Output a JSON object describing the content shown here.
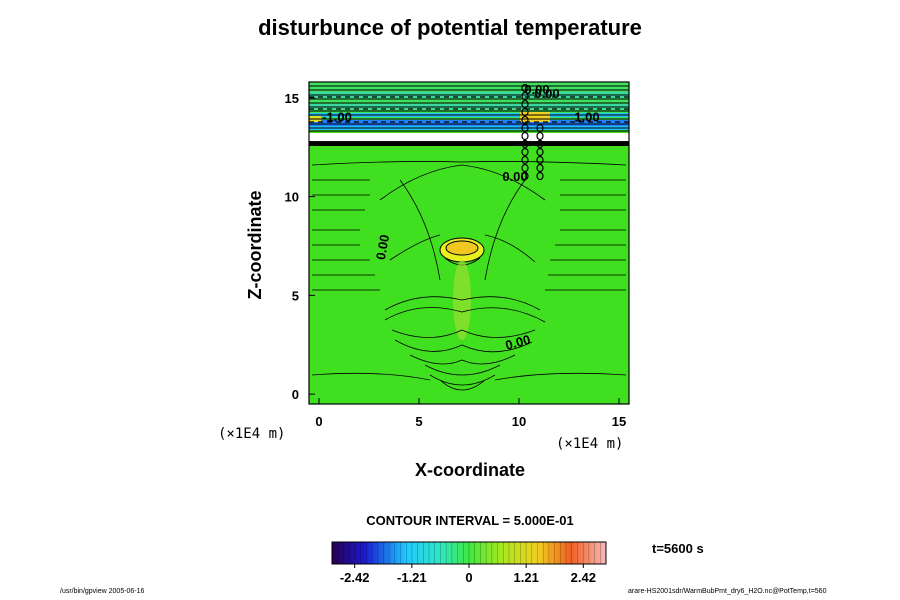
{
  "chart_data": {
    "type": "heatmap",
    "title": "disturbunce of potential temperature",
    "xlabel": "X-coordinate",
    "ylabel": "Z-coordinate",
    "x_unit_label": "(×1E4 m)",
    "xlim": [
      -0.5,
      15.5
    ],
    "ylim": [
      -0.5,
      15.8
    ],
    "x_ticks": [
      0,
      5,
      10,
      15
    ],
    "y_ticks": [
      0,
      5,
      10,
      15
    ],
    "x_tick_labels": [
      "0",
      "5",
      "10",
      "15"
    ],
    "y_tick_labels": [
      "0",
      "5",
      "10",
      "15"
    ],
    "contour_interval_text": "CONTOUR INTERVAL = 5.000E-01",
    "time_text": "t=5600 s",
    "contour_labels": [
      {
        "text": "0.00",
        "x": 3.4,
        "z": 7.4,
        "rot": -80
      },
      {
        "text": "0.00",
        "x": 10.0,
        "z": 2.4,
        "rot": -15
      },
      {
        "text": "0.00",
        "x": 9.8,
        "z": 10.8,
        "rot": 0
      },
      {
        "text": "-1.00",
        "x": 0.9,
        "z": 13.8,
        "rot": 0
      },
      {
        "text": "0.00",
        "x": 10.9,
        "z": 15.2,
        "rot": 0
      },
      {
        "text": "0.00",
        "x": 11.4,
        "z": 15.0,
        "rot": 0
      },
      {
        "text": "1.00",
        "x": 13.4,
        "z": 13.8,
        "rot": 0
      }
    ],
    "colorbar": {
      "vmin": -2.9,
      "vmax": 2.9,
      "tick_values": [
        -2.42,
        -1.21,
        0,
        1.21,
        2.42
      ],
      "tick_labels": [
        "-2.42",
        "-1.21",
        "0",
        "1.21",
        "2.42"
      ]
    },
    "legend_position": "bottom"
  },
  "footer": {
    "left": "/usr/bin/gpview 2005-06-16",
    "right": "arare-HS2001sdr/WarmBubPmt_dry6_H2O.nc@PotTemp,t=560"
  }
}
